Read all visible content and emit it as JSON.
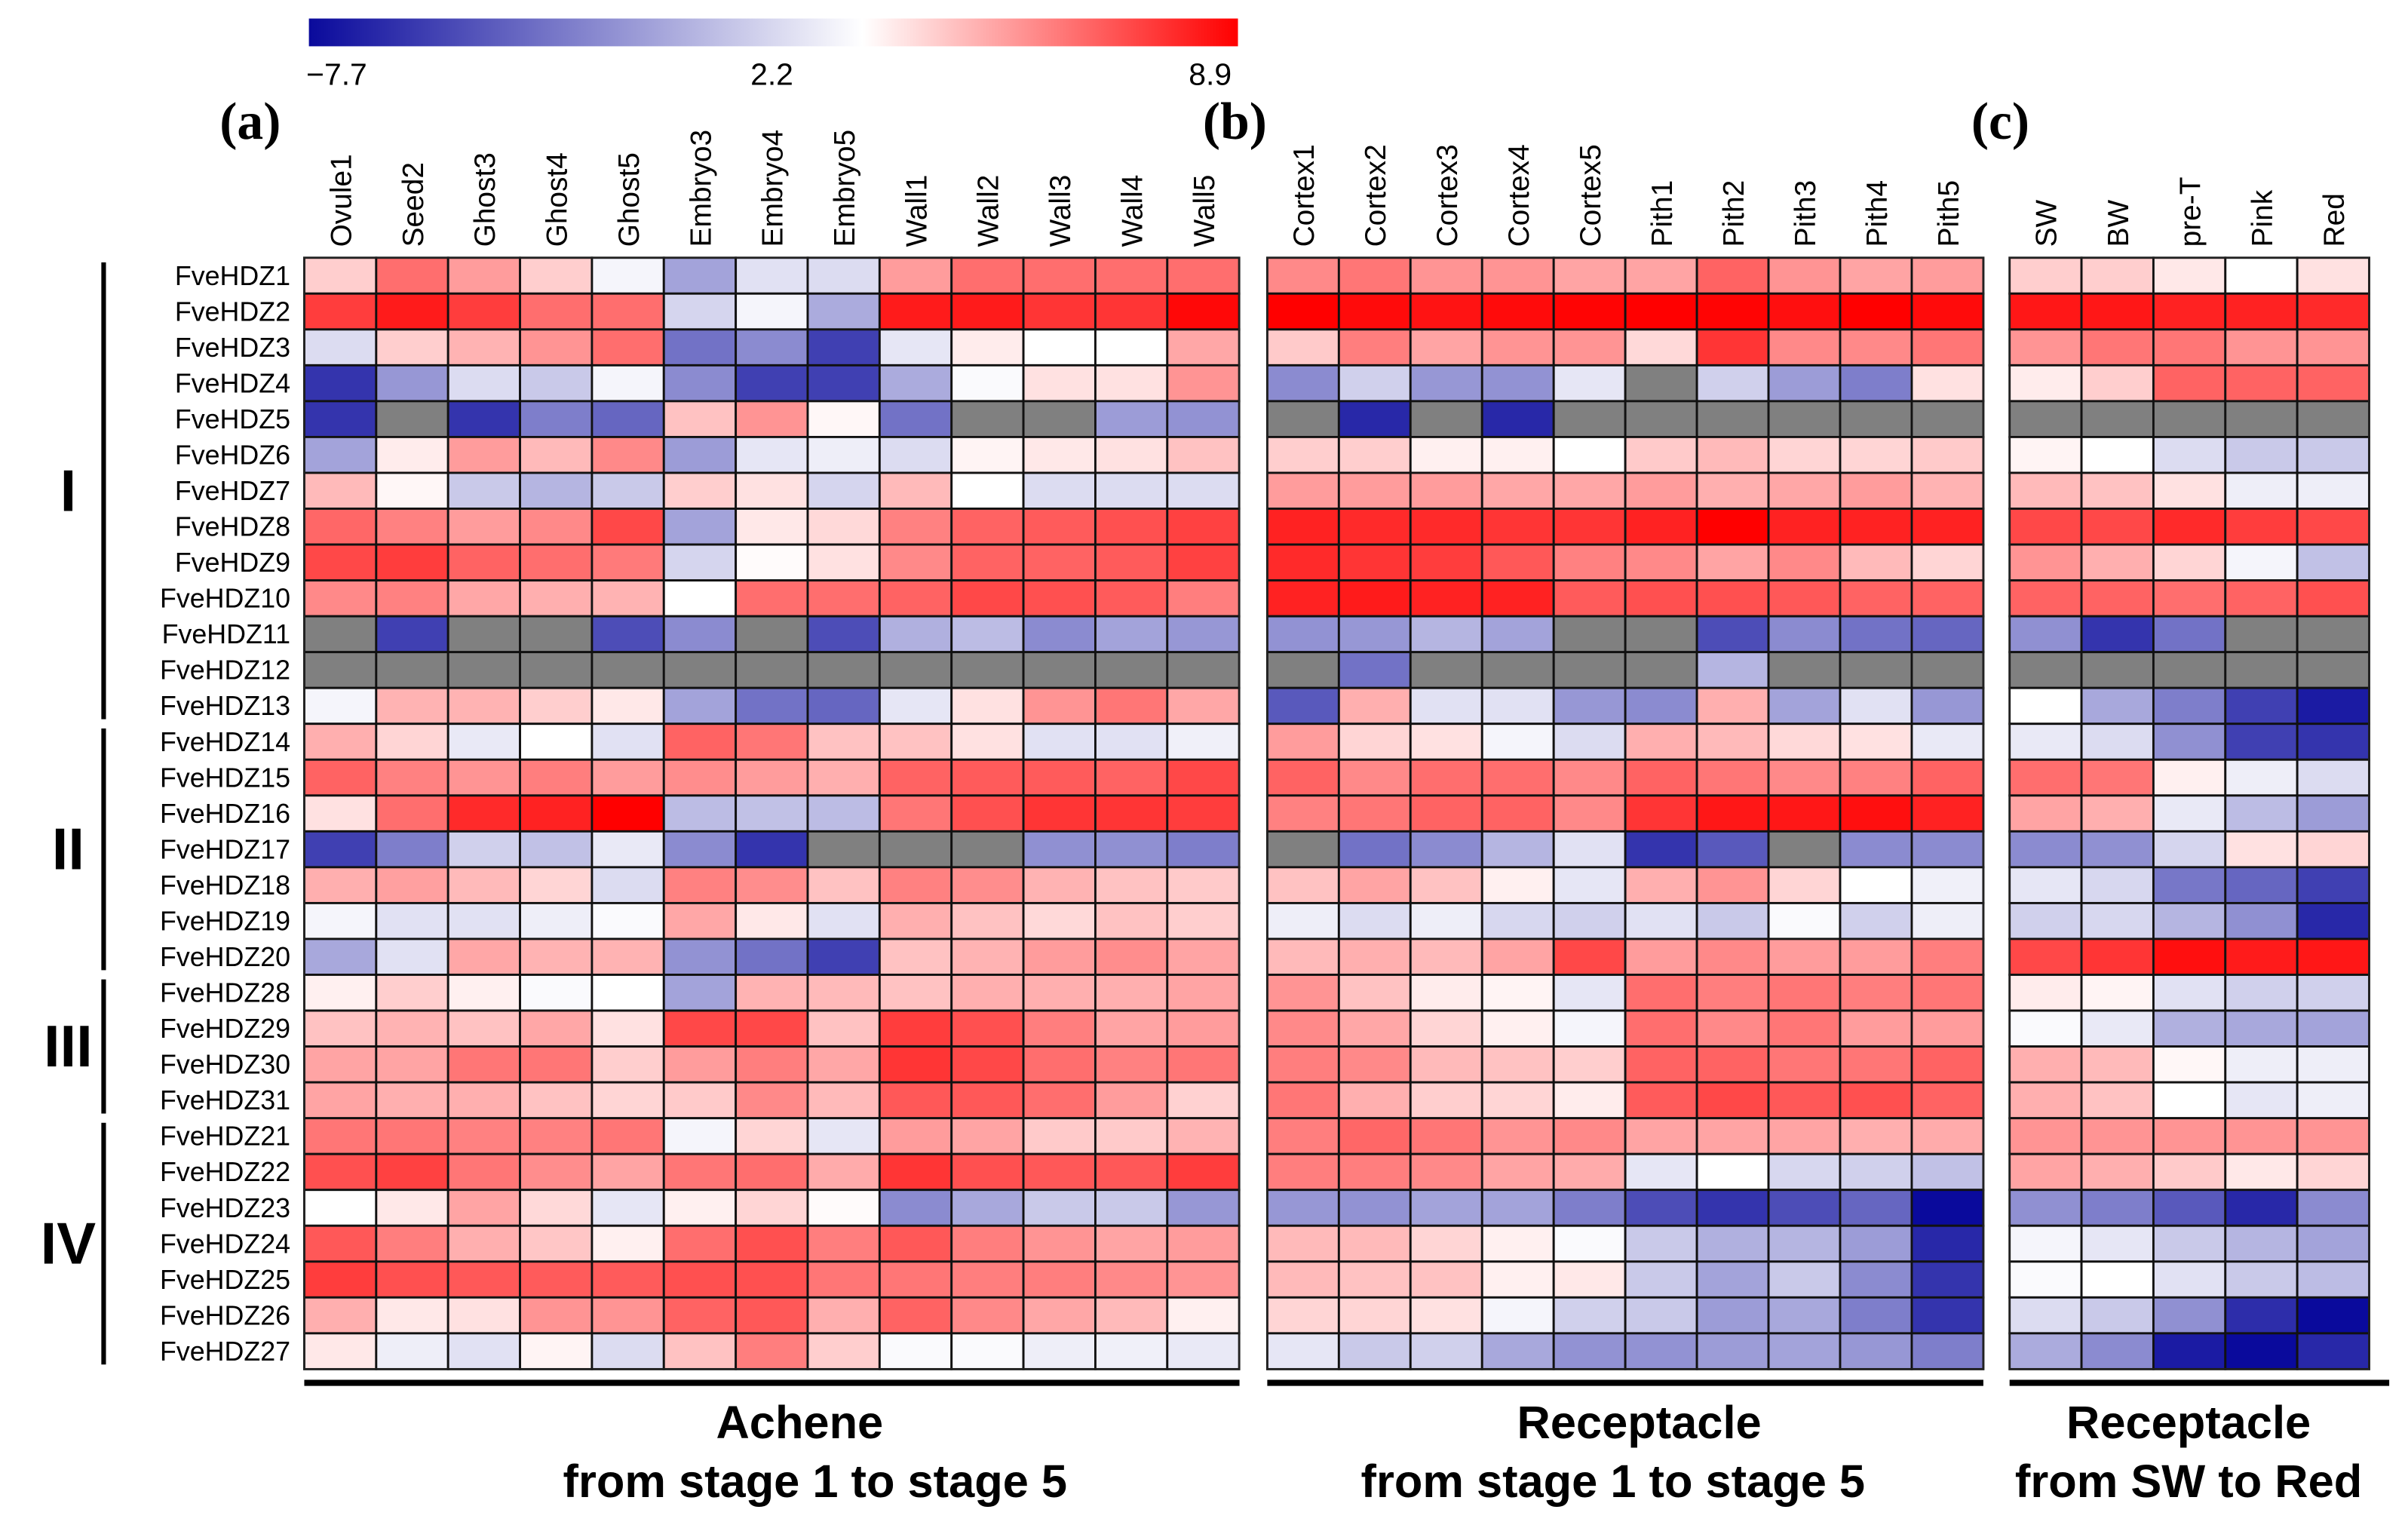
{
  "chart_data": {
    "type": "heatmap",
    "colorbar": {
      "min": -7.7,
      "mid": 2.2,
      "max": 8.9,
      "min_label": "−7.7",
      "mid_label": "2.2",
      "max_label": "8.9",
      "low_color": "#0a0a9c",
      "mid_color": "#ffffff",
      "high_color": "#ff0000",
      "na_color": "#808080"
    },
    "rows": [
      "FveHDZ1",
      "FveHDZ2",
      "FveHDZ3",
      "FveHDZ4",
      "FveHDZ5",
      "FveHDZ6",
      "FveHDZ7",
      "FveHDZ8",
      "FveHDZ9",
      "FveHDZ10",
      "FveHDZ11",
      "FveHDZ12",
      "FveHDZ13",
      "FveHDZ14",
      "FveHDZ15",
      "FveHDZ16",
      "FveHDZ17",
      "FveHDZ18",
      "FveHDZ19",
      "FveHDZ20",
      "FveHDZ28",
      "FveHDZ29",
      "FveHDZ30",
      "FveHDZ31",
      "FveHDZ21",
      "FveHDZ22",
      "FveHDZ23",
      "FveHDZ24",
      "FveHDZ25",
      "FveHDZ26",
      "FveHDZ27"
    ],
    "groups": [
      {
        "label": "I",
        "first_row": 0,
        "last_row": 12
      },
      {
        "label": "II",
        "first_row": 13,
        "last_row": 19
      },
      {
        "label": "III",
        "first_row": 20,
        "last_row": 23
      },
      {
        "label": "IV",
        "first_row": 24,
        "last_row": 30
      }
    ],
    "panels": [
      {
        "letter": "(a)",
        "title_line1": "Achene",
        "title_line2": "from stage 1 to stage 5",
        "columns": [
          "Ovule1",
          "Seed2",
          "Ghost3",
          "Ghost4",
          "Ghost5",
          "Embryo3",
          "Embryo4",
          "Embryo5",
          "Wall1",
          "Wall2",
          "Wall3",
          "Wall4",
          "Wall5"
        ],
        "values": [
          [
            3.5,
            6,
            4.8,
            3.5,
            1.8,
            -1.5,
            1.0,
            0.8,
            4.8,
            6,
            6,
            6,
            6
          ],
          [
            7.3,
            8.2,
            7.3,
            6,
            6,
            0.5,
            1.8,
            -1.2,
            8.2,
            8.2,
            7.5,
            7.5,
            8.7
          ],
          [
            0.8,
            3.5,
            4.2,
            5,
            6,
            -3.5,
            -2.5,
            -5.5,
            1.2,
            2.7,
            2.2,
            2.2,
            4.5
          ],
          [
            -6,
            -2,
            0.8,
            0,
            1.8,
            -2.5,
            -5.5,
            -5.5,
            -1.2,
            2,
            3,
            3,
            5
          ],
          [
            -6,
            null,
            -6,
            -3,
            -4,
            3.8,
            5,
            2.4,
            -3.5,
            null,
            null,
            -1.8,
            -2.2
          ],
          [
            -1.5,
            2.7,
            4.8,
            4,
            5.3,
            -1.8,
            1.2,
            1.5,
            0.8,
            2.5,
            2.8,
            3,
            3.8
          ],
          [
            4,
            2.4,
            0,
            -0.8,
            0,
            3.5,
            3,
            0.5,
            4,
            2.2,
            0.8,
            0.8,
            0.8
          ],
          [
            6.2,
            5.5,
            4.8,
            5.3,
            7,
            -1.5,
            2.8,
            3.2,
            5.5,
            6.3,
            6.5,
            6.8,
            7.2
          ],
          [
            7,
            7.3,
            6.3,
            6,
            5.7,
            0.5,
            2.3,
            3,
            5.3,
            6.3,
            6.3,
            6.5,
            7.2
          ],
          [
            5.3,
            5.5,
            4.5,
            4.3,
            4.2,
            2.2,
            6,
            6,
            6.3,
            7,
            6.8,
            6.5,
            5.6
          ],
          [
            null,
            -5.5,
            null,
            null,
            -5,
            -2.5,
            null,
            -5,
            -1,
            -0.5,
            -2.5,
            -1.5,
            -2
          ],
          [
            null,
            null,
            null,
            null,
            null,
            null,
            null,
            null,
            null,
            null,
            null,
            null,
            null
          ],
          [
            1.8,
            4.2,
            4.2,
            3.5,
            2.8,
            -1.5,
            -3.5,
            -4,
            1.2,
            3,
            5,
            5.8,
            4.5
          ],
          [
            4.3,
            3.3,
            1.3,
            2.2,
            1,
            6.3,
            5.8,
            3.8,
            3.8,
            3,
            1,
            1,
            1.6
          ],
          [
            6.3,
            5.5,
            5,
            5.6,
            4.8,
            5.2,
            4.8,
            4.3,
            6.3,
            6.5,
            6.5,
            6.3,
            7
          ],
          [
            3,
            6,
            7.8,
            8,
            8.9,
            -0.5,
            -0.3,
            -0.5,
            5.8,
            6.8,
            7.5,
            7.5,
            7.3
          ],
          [
            -5.5,
            -3,
            0.3,
            -0.3,
            1.3,
            -2.5,
            -6,
            null,
            null,
            null,
            -2.3,
            -2.3,
            -3
          ],
          [
            4.3,
            4.7,
            4,
            3.3,
            0.8,
            5.5,
            5.2,
            3.8,
            5.5,
            5.2,
            4.2,
            3.8,
            3.6
          ],
          [
            1.8,
            1,
            1,
            1.5,
            2,
            4.5,
            2.8,
            1,
            4.3,
            3.8,
            3.2,
            3.8,
            3.5
          ],
          [
            -1.3,
            1,
            4.5,
            4.2,
            4.2,
            -2.2,
            -3.5,
            -5.5,
            3.8,
            4.2,
            4.8,
            5.2,
            4.6
          ],
          [
            2.6,
            3.5,
            2.6,
            2,
            2.2,
            -1.5,
            4.2,
            4,
            3.8,
            4.3,
            4.3,
            4.3,
            4.6
          ],
          [
            3.8,
            4.2,
            3.8,
            4.5,
            3,
            7,
            7,
            3.8,
            7.3,
            6.8,
            5.6,
            4.6,
            4.8
          ],
          [
            4.6,
            4.6,
            5.8,
            5.8,
            3.5,
            4.8,
            5.6,
            4.5,
            7.5,
            7,
            6,
            5.5,
            5.8
          ],
          [
            4.6,
            4.3,
            4.3,
            3.8,
            3.3,
            3.6,
            5.3,
            4,
            6.6,
            6.6,
            6,
            4.8,
            3.4
          ],
          [
            5.8,
            5.8,
            5.5,
            5.5,
            5.8,
            1.8,
            3.3,
            1.2,
            4.8,
            4.6,
            3.6,
            3.6,
            4.2
          ],
          [
            6.8,
            7.2,
            5.8,
            5.2,
            4.6,
            5.8,
            6,
            4.4,
            7.5,
            6.8,
            6.6,
            6.6,
            7.3
          ],
          [
            2.2,
            2.8,
            4.6,
            3.2,
            1.2,
            2.6,
            3.3,
            2.3,
            -2.5,
            -1.3,
            0,
            0,
            -2
          ],
          [
            6.6,
            5.6,
            4.3,
            3.7,
            2.6,
            6,
            6.8,
            5.6,
            6.6,
            5.6,
            5,
            4.6,
            4.8
          ],
          [
            7.3,
            6.8,
            6.6,
            6.5,
            6.5,
            6.8,
            6.8,
            5.8,
            5.8,
            5.6,
            5.6,
            5.3,
            5
          ],
          [
            4.3,
            2.8,
            3,
            5,
            5,
            6.3,
            6.6,
            4.3,
            6.3,
            5.3,
            4.5,
            4,
            2.6
          ],
          [
            2.8,
            1.5,
            1,
            2.5,
            0.8,
            3.8,
            5.6,
            3.5,
            2,
            2,
            1.5,
            1.6,
            1.3
          ]
        ]
      },
      {
        "letter": "(b)",
        "title_line1": "Receptacle",
        "title_line2": "from stage 1 to stage 5",
        "columns": [
          "Cortex1",
          "Cortex2",
          "Cortex3",
          "Cortex4",
          "Cortex5",
          "Pith1",
          "Pith2",
          "Pith3",
          "Pith4",
          "Pith5"
        ],
        "values": [
          [
            5.3,
            5.8,
            5,
            5,
            4.6,
            4.6,
            6.3,
            5,
            4.6,
            4.8
          ],
          [
            8.9,
            8.6,
            8.4,
            8.6,
            8.8,
            8.9,
            8.8,
            8.5,
            8.9,
            8.6
          ],
          [
            3.6,
            5.6,
            4.6,
            5,
            5,
            3.2,
            7.5,
            5.3,
            5.3,
            5.8
          ],
          [
            -2.5,
            0.3,
            -2,
            -2.2,
            1.2,
            null,
            0.3,
            -1.8,
            -3,
            3
          ],
          [
            null,
            -6.5,
            null,
            -6.5,
            null,
            null,
            null,
            null,
            null,
            null
          ],
          [
            3.5,
            3.5,
            2.6,
            2.6,
            2.2,
            3.6,
            4,
            3.3,
            3.3,
            3.6
          ],
          [
            4.8,
            4.8,
            4.8,
            4.5,
            4.5,
            4.8,
            4.3,
            4.5,
            4.8,
            4.2
          ],
          [
            8,
            7.8,
            7.8,
            7.5,
            7.5,
            8,
            8.9,
            8,
            8,
            8
          ],
          [
            7.8,
            7.5,
            7.3,
            6.6,
            5.5,
            5.3,
            4.6,
            5.3,
            4,
            3.3
          ],
          [
            8,
            8.2,
            8,
            8,
            6.5,
            6.8,
            6.8,
            6.6,
            6.3,
            6.3
          ],
          [
            -2.2,
            -2,
            -0.8,
            -1.5,
            null,
            null,
            -5,
            -2.5,
            -3.5,
            -4
          ],
          [
            null,
            -3.5,
            null,
            null,
            null,
            null,
            -0.8,
            null,
            null,
            null
          ],
          [
            -4.5,
            4.3,
            1,
            1,
            -2,
            -2.5,
            4.3,
            -1.5,
            1,
            -2
          ],
          [
            4.8,
            3.3,
            3,
            1.8,
            0.8,
            4.3,
            4,
            3.2,
            3,
            1.3
          ],
          [
            6.3,
            5.3,
            6,
            6,
            5.3,
            6.3,
            5.8,
            5.3,
            5.5,
            6.3
          ],
          [
            5.5,
            5.8,
            6.3,
            6.3,
            5.3,
            7.5,
            8.3,
            8.3,
            8.5,
            8
          ],
          [
            null,
            -3.5,
            -2.5,
            -0.8,
            1,
            -6,
            -4.5,
            null,
            -2.5,
            -2.5
          ],
          [
            3.8,
            4.6,
            3.8,
            2.6,
            1.2,
            4.3,
            5,
            3.3,
            2.2,
            1.6
          ],
          [
            1.5,
            0.8,
            1.5,
            0.6,
            0.3,
            1,
            0,
            2,
            0.3,
            1.5
          ],
          [
            4,
            4.3,
            4,
            4.6,
            7,
            4.8,
            5.3,
            4.8,
            4.8,
            5.6
          ],
          [
            5,
            3.8,
            2.7,
            2.5,
            1.2,
            6,
            5.6,
            5.8,
            5.6,
            5.8
          ],
          [
            5.3,
            4.5,
            3.3,
            2.6,
            1.8,
            6,
            5.3,
            5.8,
            4.8,
            4.8
          ],
          [
            5.6,
            5.3,
            4,
            3.8,
            3.5,
            6.3,
            6.3,
            5.8,
            5.8,
            6.3
          ],
          [
            5.8,
            4.3,
            3.5,
            3.3,
            2.7,
            6.5,
            7,
            6.6,
            6.8,
            6.3
          ],
          [
            5.6,
            6.2,
            5.8,
            5,
            5.3,
            4.6,
            4.6,
            4.6,
            4.3,
            4.4
          ],
          [
            5.6,
            5.6,
            5.3,
            4.6,
            4.4,
            1.2,
            2.2,
            0.6,
            0.3,
            -0.3
          ],
          [
            -2,
            -2.2,
            -1.5,
            -1.5,
            -3,
            -5,
            -6,
            -5,
            -4,
            -7.7
          ],
          [
            4,
            4,
            3.3,
            2.6,
            2,
            0,
            -1,
            -0.8,
            -1.8,
            -6.5
          ],
          [
            4,
            3.8,
            3.8,
            2.6,
            2.8,
            0,
            -1.5,
            0,
            -2.5,
            -6
          ],
          [
            3.3,
            3.3,
            3,
            1.8,
            0.3,
            0,
            -1.8,
            -1.3,
            -3,
            -6
          ],
          [
            1.2,
            0,
            0.3,
            -1.3,
            -2.2,
            -2.2,
            -1.8,
            -1.5,
            -2,
            -3
          ]
        ]
      },
      {
        "letter": "(c)",
        "title_line1": "Receptacle",
        "title_line2": "from SW to Red",
        "columns": [
          "SW",
          "BW",
          "pre-T",
          "Pink",
          "Red"
        ],
        "values": [
          [
            3.5,
            3.5,
            2.8,
            2.2,
            3
          ],
          [
            8.3,
            8.3,
            8,
            8,
            7.8
          ],
          [
            5,
            5.8,
            5.8,
            5,
            5
          ],
          [
            2.7,
            3.5,
            6.3,
            6.3,
            6.3
          ],
          [
            null,
            null,
            null,
            null,
            null
          ],
          [
            2.5,
            2.2,
            0.8,
            0,
            0
          ],
          [
            4,
            3.8,
            3,
            1.5,
            1.5
          ],
          [
            7,
            7,
            7.8,
            7.3,
            7
          ],
          [
            5,
            4.3,
            3.3,
            1.8,
            -0.3
          ],
          [
            6.3,
            6.3,
            6,
            6.3,
            6.8
          ],
          [
            -2.3,
            -6,
            -3.5,
            null,
            null
          ],
          [
            null,
            null,
            null,
            null,
            null
          ],
          [
            2.2,
            -1.3,
            -3,
            -5.5,
            -7
          ],
          [
            1.3,
            0.8,
            -2.3,
            -5.5,
            -6
          ],
          [
            6,
            5.8,
            2.6,
            1.5,
            0.8
          ],
          [
            4.6,
            4.3,
            1.3,
            -0.5,
            -1.8
          ],
          [
            -2.5,
            -2.3,
            0.5,
            3,
            3.3
          ],
          [
            1.2,
            0.6,
            -3.3,
            -4,
            -5.5
          ],
          [
            0.3,
            0.6,
            -0.8,
            -2.3,
            -6.5
          ],
          [
            7,
            7.5,
            8.5,
            8.2,
            8.3
          ],
          [
            2.7,
            2.5,
            1,
            0.3,
            0.3
          ],
          [
            2,
            1.3,
            -1,
            -1.3,
            -1.5
          ],
          [
            4.3,
            4,
            2.4,
            1.5,
            1.5
          ],
          [
            4.3,
            3.8,
            2.2,
            1.2,
            1.5
          ],
          [
            5,
            5,
            5,
            5,
            5
          ],
          [
            4.6,
            4.3,
            3.6,
            2.8,
            3.3
          ],
          [
            -2.3,
            -3,
            -4.5,
            -6.5,
            -2.5
          ],
          [
            1.8,
            1.2,
            0,
            -0.8,
            -1.5
          ],
          [
            2,
            2.2,
            1,
            0,
            -0.5
          ],
          [
            0.8,
            0,
            -2.3,
            -6.3,
            -7.7
          ],
          [
            -1.2,
            -2.5,
            -7,
            -7.7,
            -6.5
          ]
        ]
      }
    ]
  }
}
